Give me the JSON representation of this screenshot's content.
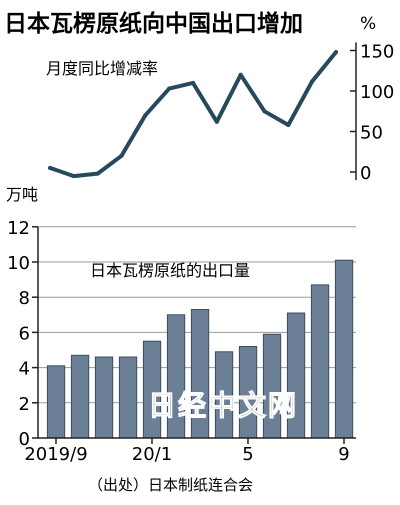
{
  "chart_data": [
    {
      "type": "line",
      "title": "日本瓦楞原纸向中国出口增加",
      "label": "月度同比增减率",
      "unit": "%",
      "y_ticks": [
        "150",
        "100",
        "50",
        "0"
      ],
      "ylim": [
        -10,
        160
      ],
      "y_axis_side": "right",
      "color": "#254a5c",
      "values": [
        5,
        -5,
        -2,
        20,
        70,
        103,
        110,
        62,
        120,
        75,
        58,
        112,
        148
      ]
    },
    {
      "type": "bar",
      "label": "日本瓦楞原纸的出口量",
      "unit": "万吨",
      "y_ticks": [
        "12",
        "10",
        "8",
        "6",
        "4",
        "2",
        "0"
      ],
      "ylim": [
        0,
        12
      ],
      "grid": true,
      "color": "#6b7f97",
      "values": [
        4.1,
        4.7,
        4.6,
        4.6,
        5.5,
        7.0,
        7.3,
        4.9,
        5.2,
        5.9,
        7.1,
        8.7,
        10.1
      ],
      "x_ticks": [
        {
          "label": "2019/9",
          "index": 0
        },
        {
          "label": "20/1",
          "index": 4
        },
        {
          "label": "5",
          "index": 8
        },
        {
          "label": "9",
          "index": 12
        }
      ],
      "source": "（出处）日本制纸连合会"
    }
  ],
  "watermark": "日经中文网"
}
